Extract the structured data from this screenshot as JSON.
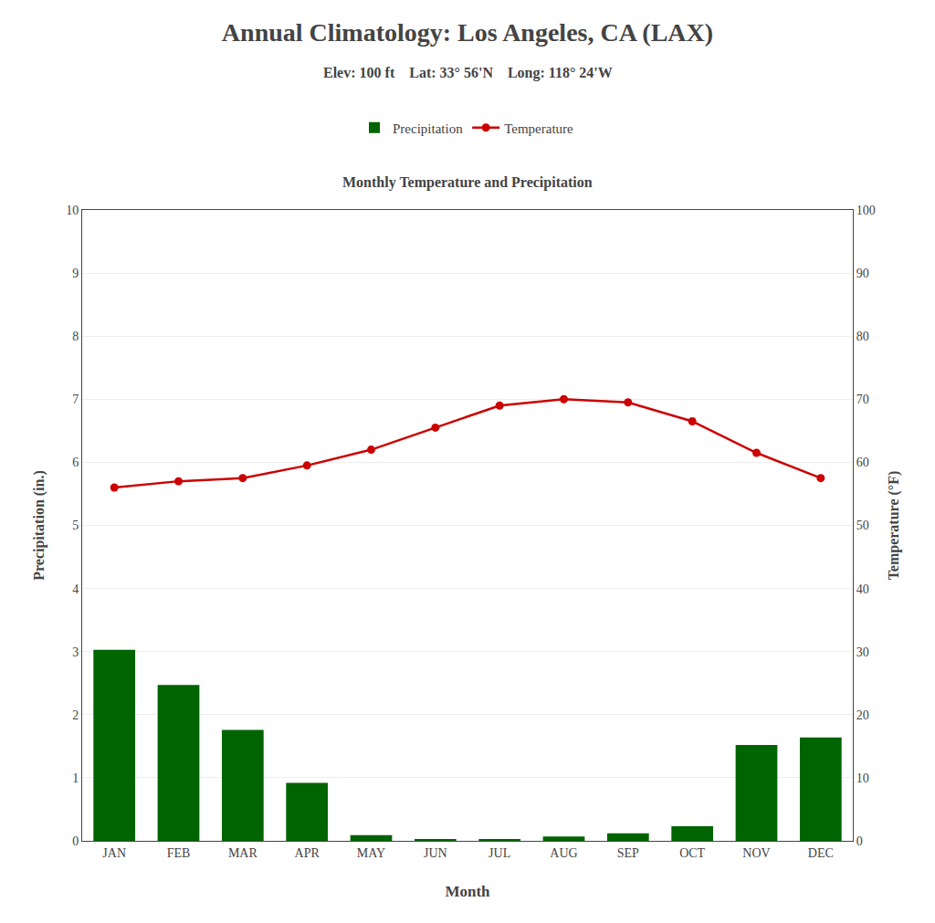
{
  "chart_data": {
    "type": "bar",
    "title": "Annual Climatology: Los Angeles, CA (LAX)",
    "subtitle": "Elev: 100 ft    Lat: 33° 56'N    Long: 118° 24'W",
    "annotations": [
      "Monthly Temperature and Precipitation"
    ],
    "categories": [
      "JAN",
      "FEB",
      "MAR",
      "APR",
      "MAY",
      "JUN",
      "JUL",
      "AUG",
      "SEP",
      "OCT",
      "NOV",
      "DEC"
    ],
    "series": [
      {
        "name": "Precipitation",
        "type": "bar",
        "color": "#006400",
        "values": [
          3.03,
          2.47,
          1.76,
          0.92,
          0.09,
          0.03,
          0.02,
          0.07,
          0.12,
          0.23,
          1.52,
          1.64
        ]
      },
      {
        "name": "Temperature",
        "type": "line",
        "color": "#cc0000",
        "marker": "circle",
        "axis": "y2",
        "values": [
          56.0,
          57.0,
          57.5,
          59.5,
          62.0,
          65.5,
          69.0,
          70.0,
          69.5,
          66.5,
          61.5,
          57.5
        ]
      }
    ],
    "xlabel": "Month",
    "ylabel": "Precipitation (in.)",
    "y2label": "Temperature (°F)",
    "ylim": [
      0,
      10
    ],
    "yticks": [
      0,
      1,
      2,
      3,
      4,
      5,
      6,
      7,
      8,
      9,
      10
    ],
    "y2lim": [
      0,
      100
    ],
    "y2ticks": [
      0,
      10,
      20,
      30,
      40,
      50,
      60,
      70,
      80,
      90,
      100
    ],
    "grid": true,
    "legend": "top"
  }
}
